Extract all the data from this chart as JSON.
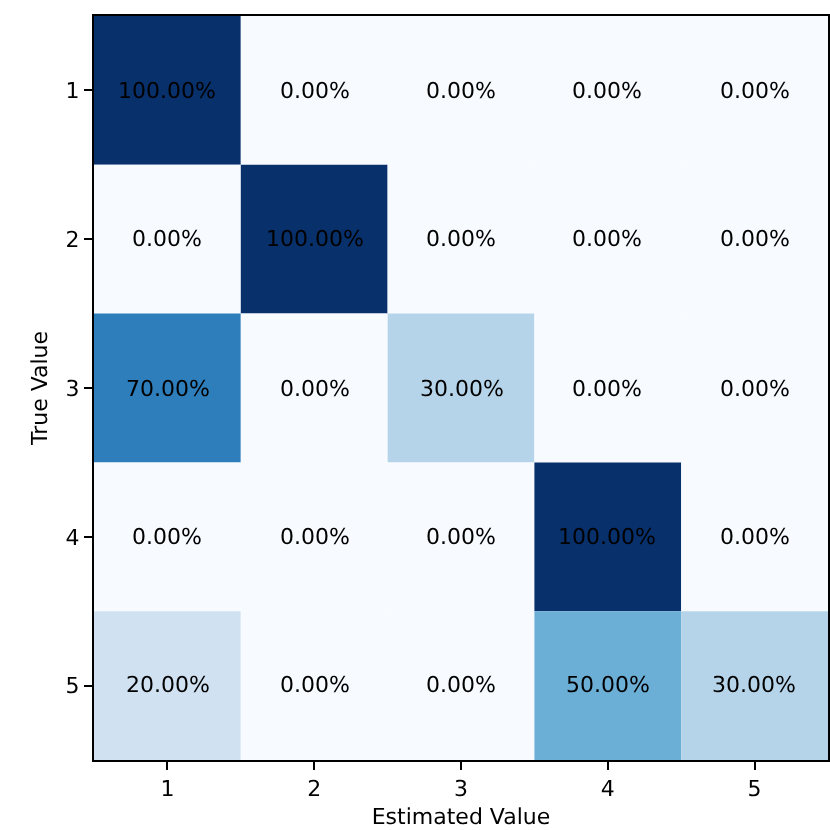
{
  "chart_data": {
    "type": "heatmap",
    "xlabel": "Estimated Value",
    "ylabel": "True Value",
    "categories": [
      "1",
      "2",
      "3",
      "4",
      "5"
    ],
    "y_categories": [
      "1",
      "2",
      "3",
      "4",
      "5"
    ],
    "cells": [
      [
        100,
        0,
        0,
        0,
        0
      ],
      [
        0,
        100,
        0,
        0,
        0
      ],
      [
        70,
        0,
        30,
        0,
        0
      ],
      [
        0,
        0,
        0,
        100,
        0
      ],
      [
        20,
        0,
        0,
        50,
        30
      ]
    ],
    "cell_labels": [
      [
        "100.00%",
        "0.00%",
        "0.00%",
        "0.00%",
        "0.00%"
      ],
      [
        "0.00%",
        "100.00%",
        "0.00%",
        "0.00%",
        "0.00%"
      ],
      [
        "70.00%",
        "0.00%",
        "30.00%",
        "0.00%",
        "0.00%"
      ],
      [
        "0.00%",
        "0.00%",
        "0.00%",
        "100.00%",
        "0.00%"
      ],
      [
        "20.00%",
        "0.00%",
        "0.00%",
        "50.00%",
        "30.00%"
      ]
    ]
  }
}
